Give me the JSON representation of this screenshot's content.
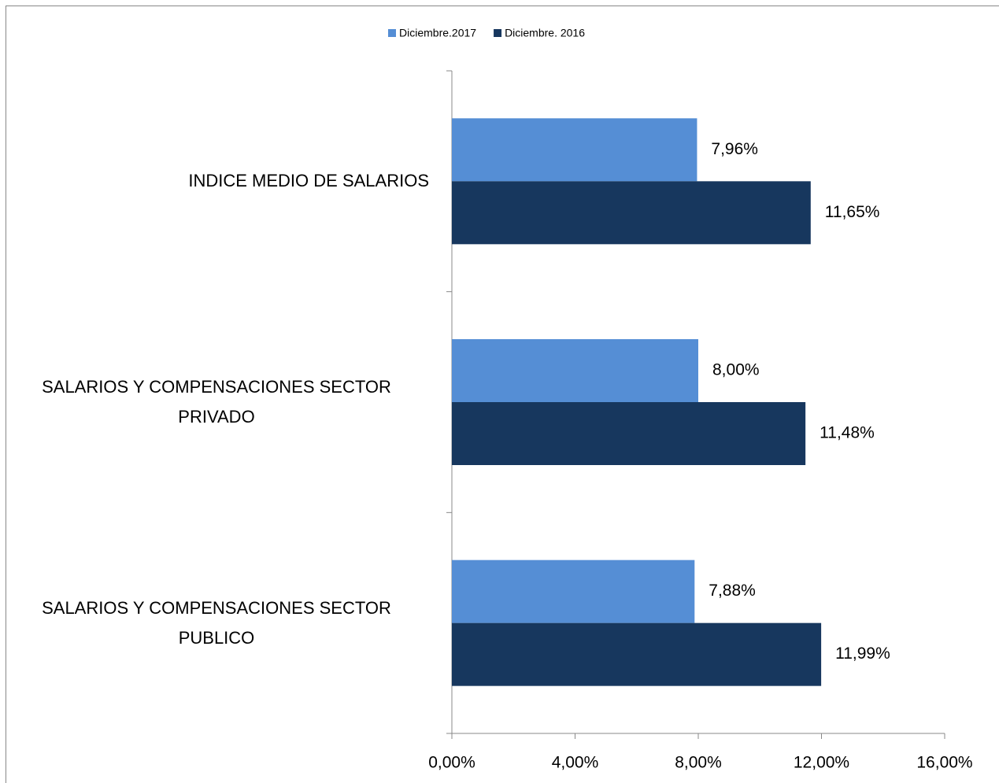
{
  "chart_data": {
    "type": "bar",
    "orientation": "horizontal",
    "categories": [
      "INDICE MEDIO DE SALARIOS",
      "SALARIOS Y COMPENSACIONES SECTOR PRIVADO",
      "SALARIOS Y COMPENSACIONES SECTOR PUBLICO"
    ],
    "series": [
      {
        "name": "Diciembre.2017",
        "color": "#558ed5",
        "values": [
          7.96,
          8.0,
          7.88
        ],
        "value_labels": [
          "7,96%",
          "8,00%",
          "7,88%"
        ]
      },
      {
        "name": "Diciembre. 2016",
        "color": "#17375e",
        "values": [
          11.65,
          11.48,
          11.99
        ],
        "value_labels": [
          "11,65%",
          "11,48%",
          "11,99%"
        ]
      }
    ],
    "xlim": [
      0,
      16
    ],
    "xticks": [
      {
        "value": 0,
        "label": "0,00%"
      },
      {
        "value": 4,
        "label": "4,00%"
      },
      {
        "value": 8,
        "label": "8,00%"
      },
      {
        "value": 12,
        "label": "12,00%"
      },
      {
        "value": 16,
        "label": "16,00%"
      }
    ],
    "legend": "top",
    "grid": false
  }
}
